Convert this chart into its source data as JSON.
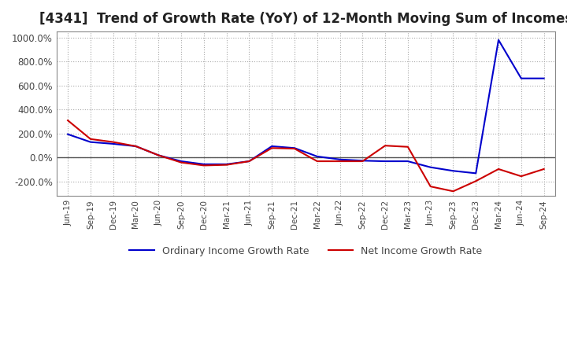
{
  "title": "[4341]  Trend of Growth Rate (YoY) of 12-Month Moving Sum of Incomes",
  "title_fontsize": 12,
  "ylim": [
    -320,
    1050
  ],
  "yticks": [
    -200,
    0,
    200,
    400,
    600,
    800,
    1000
  ],
  "background_color": "#ffffff",
  "grid_color": "#aaaaaa",
  "line1_color": "#0000cc",
  "line2_color": "#cc0000",
  "legend1": "Ordinary Income Growth Rate",
  "legend2": "Net Income Growth Rate",
  "x_labels": [
    "Jun-19",
    "Sep-19",
    "Dec-19",
    "Mar-20",
    "Jun-20",
    "Sep-20",
    "Dec-20",
    "Mar-21",
    "Jun-21",
    "Sep-21",
    "Dec-21",
    "Mar-22",
    "Jun-22",
    "Sep-22",
    "Dec-22",
    "Mar-23",
    "Jun-23",
    "Sep-23",
    "Dec-23",
    "Mar-24",
    "Jun-24",
    "Sep-24"
  ],
  "ordinary_income": [
    195,
    130,
    115,
    95,
    20,
    -30,
    -55,
    -55,
    -30,
    95,
    80,
    10,
    -15,
    -25,
    -30,
    -30,
    -80,
    -110,
    -130,
    980,
    660,
    660
  ],
  "net_income": [
    310,
    155,
    130,
    95,
    20,
    -40,
    -65,
    -60,
    -30,
    80,
    75,
    -30,
    -30,
    -30,
    100,
    90,
    -240,
    -280,
    -195,
    -95,
    -155,
    -95
  ]
}
